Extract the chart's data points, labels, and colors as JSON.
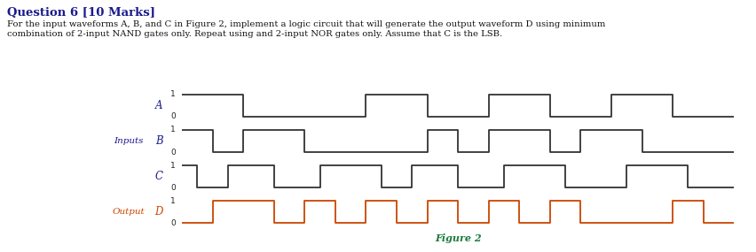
{
  "title": "Question 6 [10 Marks]",
  "subtitle_line1": "For the input waveforms A, B, and C in Figure 2, implement a logic circuit that will generate the output waveform D using minimum",
  "subtitle_line2": "combination of 2-input NAND gates only. Repeat using and 2-input NOR gates only. Assume that C is the LSB.",
  "figure_caption": "Figure 2",
  "title_color": "#1a1a8c",
  "subtitle_color": "#111111",
  "caption_color": "#1a7a3a",
  "waveform_color_ABC": "#333333",
  "waveform_color_D": "#cc4400",
  "label_color_inputs": "#1a1a8c",
  "label_color_output": "#cc4400",
  "signals": {
    "A": [
      1,
      1,
      1,
      1,
      0,
      0,
      0,
      0,
      0,
      0,
      0,
      0,
      1,
      1,
      1,
      1,
      0,
      0,
      0,
      0,
      1,
      1,
      1,
      1,
      0,
      0,
      0,
      0,
      1,
      1,
      1,
      1,
      0,
      0,
      0,
      0
    ],
    "B": [
      1,
      1,
      0,
      0,
      1,
      1,
      1,
      1,
      0,
      0,
      0,
      0,
      0,
      0,
      0,
      0,
      1,
      1,
      0,
      0,
      1,
      1,
      1,
      1,
      0,
      0,
      1,
      1,
      1,
      1,
      0,
      0,
      0,
      0,
      0,
      0
    ],
    "C": [
      1,
      0,
      0,
      1,
      1,
      1,
      0,
      0,
      0,
      1,
      1,
      1,
      1,
      0,
      0,
      1,
      1,
      1,
      0,
      0,
      0,
      1,
      1,
      1,
      1,
      0,
      0,
      0,
      0,
      1,
      1,
      1,
      1,
      0,
      0,
      0
    ],
    "D": [
      0,
      0,
      1,
      1,
      1,
      1,
      0,
      0,
      1,
      1,
      0,
      0,
      1,
      1,
      0,
      0,
      1,
      1,
      0,
      0,
      1,
      1,
      0,
      0,
      1,
      1,
      0,
      0,
      0,
      0,
      0,
      0,
      1,
      1,
      0,
      0
    ]
  },
  "n_steps": 36
}
